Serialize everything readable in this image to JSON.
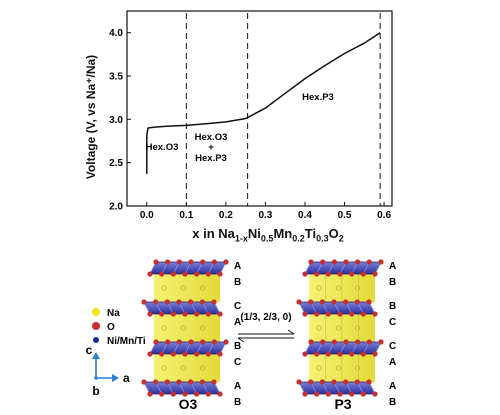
{
  "chart_data": {
    "type": "line",
    "xlabel_parts": {
      "pre": "x in Na",
      "s1": "1-x",
      "m1": "Ni",
      "s2": "0.5",
      "m2": "Mn",
      "s3": "0.2",
      "m3": "Ti",
      "s4": "0.3",
      "m4": "O",
      "s5": "2"
    },
    "ylabel": "Voltage (V, vs Na⁺/Na)",
    "xlim": [
      -0.05,
      0.62
    ],
    "ylim": [
      2.0,
      4.25
    ],
    "x_ticks": [
      "0.0",
      "0.1",
      "0.2",
      "0.3",
      "0.4",
      "0.5",
      "0.6"
    ],
    "y_ticks": [
      "2.0",
      "2.5",
      "3.0",
      "3.5",
      "4.0"
    ],
    "series": [
      {
        "x": [
          0.0,
          0.0,
          0.003,
          0.02,
          0.05,
          0.1,
          0.15,
          0.2,
          0.25,
          0.3,
          0.35,
          0.4,
          0.45,
          0.5,
          0.55,
          0.59
        ],
        "y": [
          2.37,
          2.82,
          2.9,
          2.91,
          2.92,
          2.93,
          2.95,
          2.97,
          3.01,
          3.13,
          3.3,
          3.47,
          3.62,
          3.76,
          3.88,
          4.0
        ]
      }
    ],
    "boundaries_x": [
      0.1,
      0.255,
      0.59
    ],
    "phase_labels": {
      "o3": "Hex.O3",
      "mix_1": "Hex.O3",
      "mix_2": "+",
      "mix_3": "Hex.P3",
      "p3": "Hex.P3"
    }
  },
  "structures": {
    "left_layers": [
      "A",
      "B",
      "C",
      "A",
      "B",
      "C",
      "A",
      "B"
    ],
    "right_layers": [
      "A",
      "B",
      "B",
      "C",
      "C",
      "A",
      "A",
      "B"
    ],
    "left_name": "O3",
    "right_name": "P3",
    "transition_vector": "(1/3, 2/3, 0)",
    "legend": [
      {
        "label": "Na",
        "color": "#f2e31c"
      },
      {
        "label": "O",
        "color": "#c62f2f"
      },
      {
        "label": "Ni/Mn/Ti",
        "color": "#1f2a8c"
      }
    ],
    "axes": {
      "c": "c",
      "a": "a",
      "b": "b"
    }
  }
}
